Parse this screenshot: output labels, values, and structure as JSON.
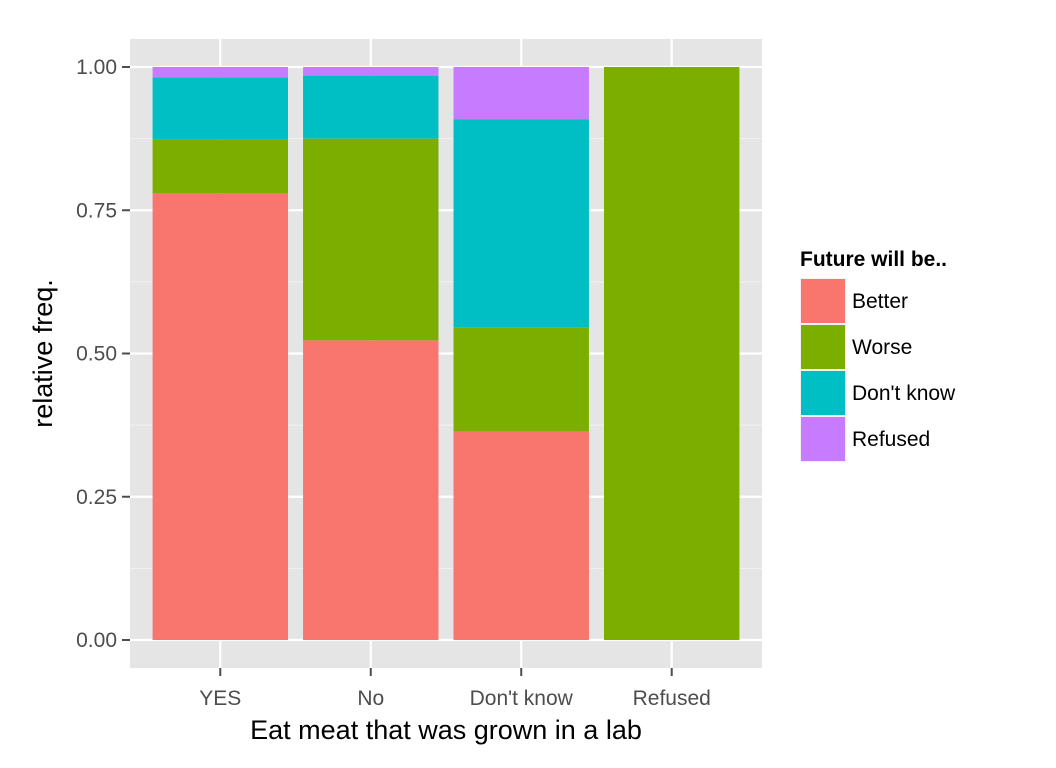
{
  "chart_data": {
    "type": "bar",
    "stacked": true,
    "title": "",
    "xlabel": "Eat meat that was grown in a lab",
    "ylabel": "relative freq.",
    "categories": [
      "YES",
      "No",
      "Don't know",
      "Refused"
    ],
    "ylim": [
      0,
      1
    ],
    "yticks": [
      "0.00",
      "0.25",
      "0.50",
      "0.75",
      "1.00"
    ],
    "ytick_values": [
      0,
      0.25,
      0.5,
      0.75,
      1.0
    ],
    "grid": true,
    "legend_title": "Future will be..",
    "legend_position": "right",
    "series": [
      {
        "name": "Better",
        "color": "#F8766D",
        "values": [
          0.78,
          0.523,
          0.364,
          0.0
        ]
      },
      {
        "name": "Worse",
        "color": "#7CAE00",
        "values": [
          0.093,
          0.352,
          0.182,
          1.0
        ]
      },
      {
        "name": "Don't know",
        "color": "#00BFC4",
        "values": [
          0.109,
          0.11,
          0.363,
          0.0
        ]
      },
      {
        "name": "Refused",
        "color": "#C77CFF",
        "values": [
          0.018,
          0.015,
          0.091,
          0.0
        ]
      }
    ],
    "panel_background": "#E5E5E5",
    "grid_color": "#FFFFFF"
  }
}
